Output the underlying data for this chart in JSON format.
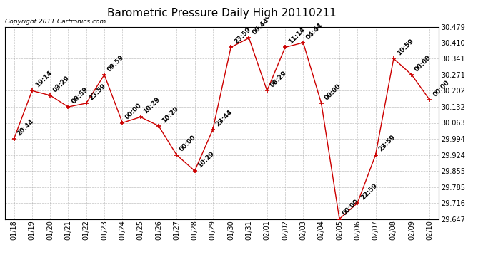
{
  "title": "Barometric Pressure Daily High 20110211",
  "copyright": "Copyright 2011 Cartronics.com",
  "x_labels": [
    "01/18",
    "01/19",
    "01/20",
    "01/21",
    "01/22",
    "01/23",
    "01/24",
    "01/25",
    "01/26",
    "01/27",
    "01/28",
    "01/29",
    "01/30",
    "01/31",
    "02/01",
    "02/02",
    "02/03",
    "02/04",
    "02/05",
    "02/06",
    "02/07",
    "02/08",
    "02/09",
    "02/10"
  ],
  "y_values": [
    29.994,
    30.202,
    30.182,
    30.132,
    30.148,
    30.271,
    30.063,
    30.088,
    30.05,
    29.924,
    29.855,
    30.034,
    30.39,
    30.43,
    30.202,
    30.39,
    30.41,
    30.148,
    29.647,
    29.716,
    29.924,
    30.341,
    30.271,
    30.162
  ],
  "point_labels": [
    "20:44",
    "19:14",
    "03:29",
    "09:59",
    "23:59",
    "09:59",
    "00:00",
    "10:29",
    "10:29",
    "00:00",
    "10:29",
    "23:44",
    "23:59",
    "06:44",
    "08:29",
    "11:14",
    "04:44",
    "00:00",
    "00:00",
    "22:59",
    "23:59",
    "10:59",
    "00:00",
    "00:00"
  ],
  "ylim": [
    29.647,
    30.479
  ],
  "yticks": [
    29.647,
    29.716,
    29.785,
    29.855,
    29.924,
    29.994,
    30.063,
    30.132,
    30.202,
    30.271,
    30.341,
    30.41,
    30.479
  ],
  "line_color": "#cc0000",
  "marker_color": "#cc0000",
  "bg_color": "#ffffff",
  "grid_color": "#aaaaaa",
  "title_fontsize": 11,
  "label_fontsize": 6.5,
  "tick_fontsize": 7,
  "copyright_fontsize": 6.5
}
